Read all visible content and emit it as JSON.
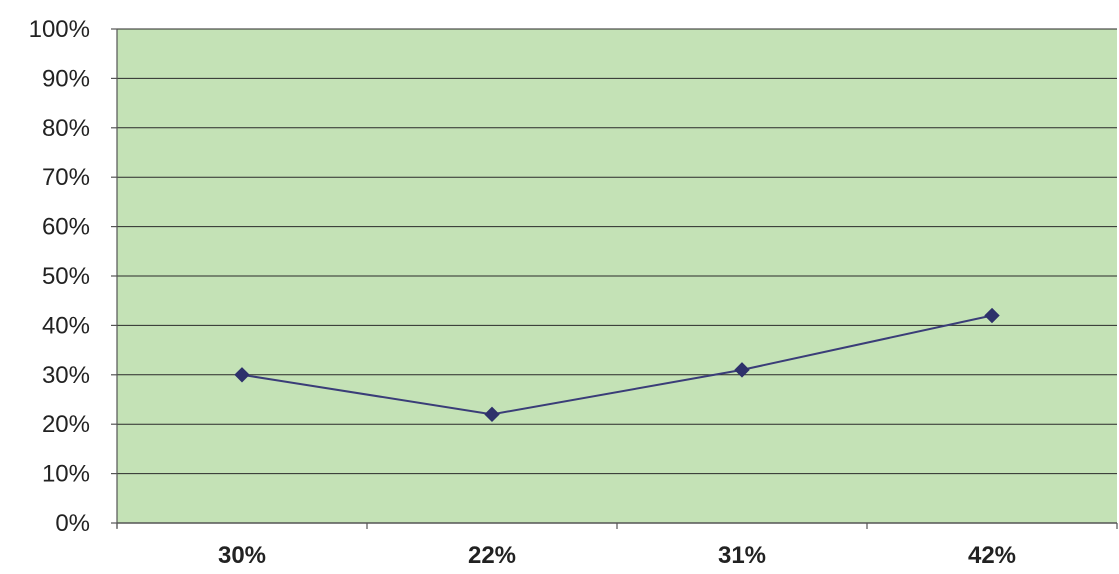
{
  "chart_data": {
    "type": "line",
    "categories": [
      "30%",
      "22%",
      "31%",
      "42%"
    ],
    "series": [
      {
        "values": [
          30,
          22,
          31,
          42
        ]
      }
    ],
    "y_ticks": [
      "0%",
      "10%",
      "20%",
      "30%",
      "40%",
      "50%",
      "60%",
      "70%",
      "80%",
      "90%",
      "100%"
    ],
    "ylim": [
      0,
      100
    ],
    "grid": true,
    "marker": "diamond",
    "colors": {
      "plot_background": "#c4e2b6",
      "gridline": "#2a2a2a",
      "line": "#3a3d78",
      "marker": "#2e316b"
    }
  }
}
